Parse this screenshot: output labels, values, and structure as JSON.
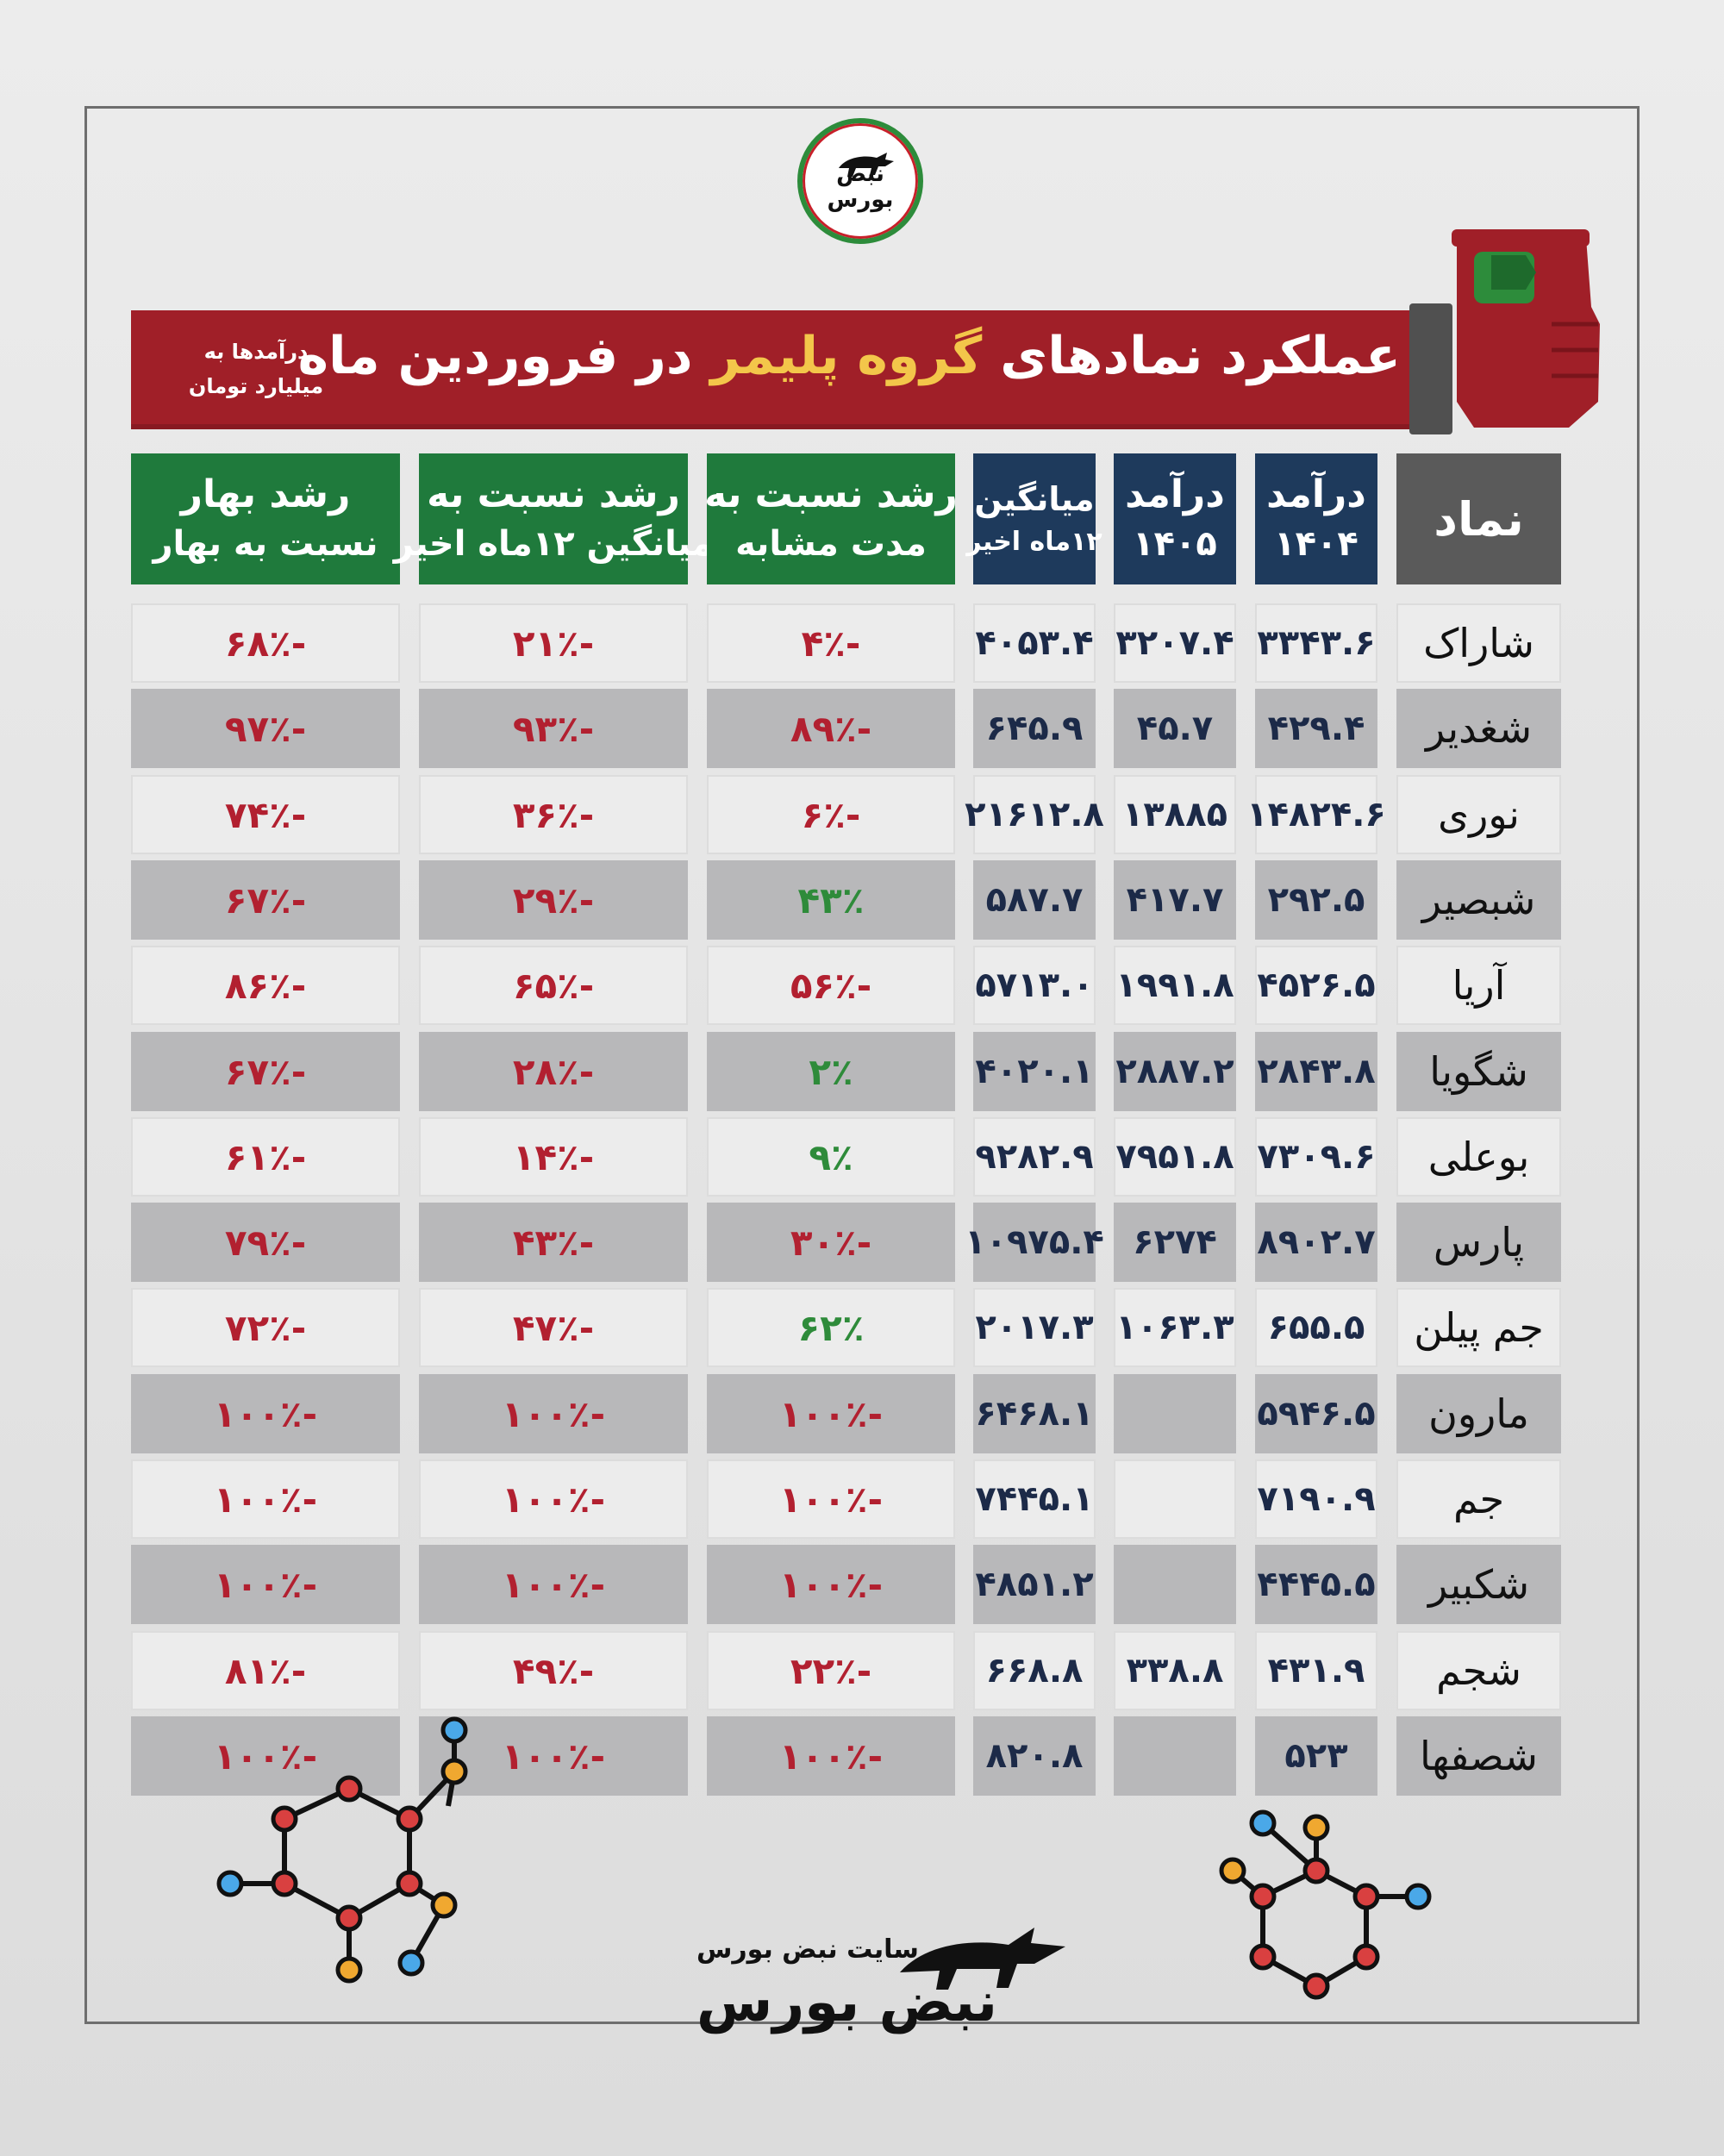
{
  "logo": {
    "line1": "نبض",
    "line2": "بورس"
  },
  "title": {
    "part1": "عملکرد نمادهای ",
    "highlight": "گروه پلیمر",
    "part2": " در فروردین ماه"
  },
  "note": {
    "line1": "درآمدها به",
    "line2": "میلیارد تومان"
  },
  "headers": {
    "symbol": "نماد",
    "rev1404": [
      "درآمد",
      "۱۴۰۴"
    ],
    "rev1405": [
      "درآمد",
      "۱۴۰۵"
    ],
    "avg": [
      "میانگین",
      "۱۲ماه اخیر"
    ],
    "growth_same": [
      "رشد نسبت به",
      "مدت مشابه"
    ],
    "growth_avg": [
      "رشد نسبت به",
      "میانگین ۱۲ماه اخیر"
    ],
    "growth_spring": [
      "رشد بهار",
      "نسبت به بهار"
    ]
  },
  "rows": [
    {
      "symbol": "شاراک",
      "rev1404": "۳۳۴۳.۶",
      "rev1405": "۳۲۰۷.۴",
      "avg": "۴۰۵۳.۴",
      "g_same": "-۴٪",
      "g_same_pos": false,
      "g_avg": "-۲۱٪",
      "g_spring": "-۶۸٪"
    },
    {
      "symbol": "شغدیر",
      "rev1404": "۴۲۹.۴",
      "rev1405": "۴۵.۷",
      "avg": "۶۴۵.۹",
      "g_same": "-۸۹٪",
      "g_same_pos": false,
      "g_avg": "-۹۳٪",
      "g_spring": "-۹۷٪"
    },
    {
      "symbol": "نوری",
      "rev1404": "۱۴۸۲۴.۶",
      "rev1405": "۱۳۸۸۵",
      "avg": "۲۱۶۱۲.۸",
      "g_same": "-۶٪",
      "g_same_pos": false,
      "g_avg": "-۳۶٪",
      "g_spring": "-۷۴٪"
    },
    {
      "symbol": "شبصیر",
      "rev1404": "۲۹۲.۵",
      "rev1405": "۴۱۷.۷",
      "avg": "۵۸۷.۷",
      "g_same": "۴۳٪",
      "g_same_pos": true,
      "g_avg": "-۲۹٪",
      "g_spring": "-۶۷٪"
    },
    {
      "symbol": "آریا",
      "rev1404": "۴۵۲۶.۵",
      "rev1405": "۱۹۹۱.۸",
      "avg": "۵۷۱۳.۰",
      "g_same": "-۵۶٪",
      "g_same_pos": false,
      "g_avg": "-۶۵٪",
      "g_spring": "-۸۶٪"
    },
    {
      "symbol": "شگویا",
      "rev1404": "۲۸۴۳.۸",
      "rev1405": "۲۸۸۷.۲",
      "avg": "۴۰۲۰.۱",
      "g_same": "۲٪",
      "g_same_pos": true,
      "g_avg": "-۲۸٪",
      "g_spring": "-۶۷٪"
    },
    {
      "symbol": "بوعلی",
      "rev1404": "۷۳۰۹.۶",
      "rev1405": "۷۹۵۱.۸",
      "avg": "۹۲۸۲.۹",
      "g_same": "۹٪",
      "g_same_pos": true,
      "g_avg": "-۱۴٪",
      "g_spring": "-۶۱٪"
    },
    {
      "symbol": "پارس",
      "rev1404": "۸۹۰۲.۷",
      "rev1405": "۶۲۷۴",
      "avg": "۱۰۹۷۵.۴",
      "g_same": "-۳۰٪",
      "g_same_pos": false,
      "g_avg": "-۴۳٪",
      "g_spring": "-۷۹٪"
    },
    {
      "symbol": "جم پیلن",
      "rev1404": "۶۵۵.۵",
      "rev1405": "۱۰۶۳.۳",
      "avg": "۲۰۱۷.۳",
      "g_same": "۶۲٪",
      "g_same_pos": true,
      "g_avg": "-۴۷٪",
      "g_spring": "-۷۲٪"
    },
    {
      "symbol": "مارون",
      "rev1404": "۵۹۴۶.۵",
      "rev1405": "",
      "avg": "۶۴۶۸.۱",
      "g_same": "-۱۰۰٪",
      "g_same_pos": false,
      "g_avg": "-۱۰۰٪",
      "g_spring": "-۱۰۰٪"
    },
    {
      "symbol": "جم",
      "rev1404": "۷۱۹۰.۹",
      "rev1405": "",
      "avg": "۷۴۴۵.۱",
      "g_same": "-۱۰۰٪",
      "g_same_pos": false,
      "g_avg": "-۱۰۰٪",
      "g_spring": "-۱۰۰٪"
    },
    {
      "symbol": "شکبیر",
      "rev1404": "۴۴۴۵.۵",
      "rev1405": "",
      "avg": "۴۸۵۱.۲",
      "g_same": "-۱۰۰٪",
      "g_same_pos": false,
      "g_avg": "-۱۰۰٪",
      "g_spring": "-۱۰۰٪"
    },
    {
      "symbol": "شجم",
      "rev1404": "۴۳۱.۹",
      "rev1405": "۳۳۸.۸",
      "avg": "۶۶۸.۸",
      "g_same": "-۲۲٪",
      "g_same_pos": false,
      "g_avg": "-۴۹٪",
      "g_spring": "-۸۱٪"
    },
    {
      "symbol": "شصفها",
      "rev1404": "۵۲۳",
      "rev1405": "",
      "avg": "۸۲۰.۸",
      "g_same": "-۱۰۰٪",
      "g_same_pos": false,
      "g_avg": "-۱۰۰٪",
      "g_spring": "-۱۰۰٪"
    }
  ],
  "footer": {
    "site_label": "سایت نبض بورس",
    "brand": "نبض بورس"
  },
  "colors": {
    "banner": "#a01f28",
    "highlight": "#f3c64a",
    "header_blue": "#1e3a5c",
    "header_green": "#1f7a3c",
    "negative": "#b22030",
    "positive": "#2e8b3a"
  }
}
